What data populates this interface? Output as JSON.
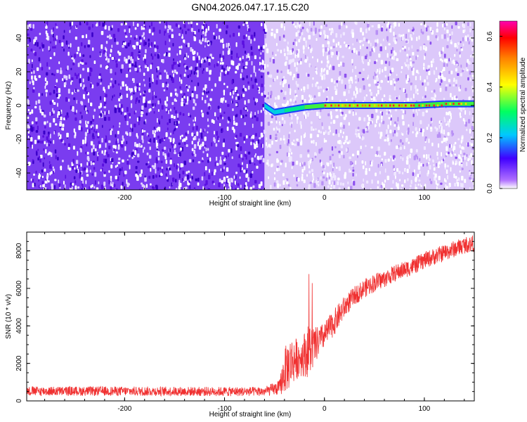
{
  "title": "GN04.2026.047.17.15.C20",
  "chart_data": [
    {
      "type": "heatmap",
      "xlabel": "Height of straight line (km)",
      "ylabel": "Frequency (Hz)",
      "xlim": [
        -298,
        150
      ],
      "ylim": [
        -50,
        50
      ],
      "x_ticks": [
        -200,
        -100,
        0,
        100
      ],
      "x_tick_labels": [
        "-200",
        "-100",
        "0",
        "100"
      ],
      "y_ticks": [
        -40,
        -20,
        0,
        20,
        40
      ],
      "y_tick_labels": [
        "-40",
        "-20",
        "0",
        "20",
        "40"
      ],
      "colorbar": {
        "label": "Normalized spectral amplitude",
        "range": [
          0,
          0.66
        ],
        "ticks": [
          0,
          0.2,
          0.4,
          0.6
        ],
        "tick_labels": [
          "0.0",
          "0.2",
          "0.4",
          "0.6"
        ],
        "colors": [
          "#ffffff",
          "#8a2be2",
          "#0000ff",
          "#00ffff",
          "#00ff00",
          "#ffff00",
          "#ff8000",
          "#ff0000",
          "#ff00ff"
        ]
      },
      "regions": [
        {
          "x_range": [
            -298,
            -60
          ],
          "description_level": 0.1
        },
        {
          "x_range": [
            -60,
            150
          ],
          "description_level": 0.03
        }
      ],
      "signal_band": {
        "frequency_hz": 0,
        "x_start": -60,
        "x_end": 150,
        "points": [
          {
            "x": -60,
            "y": 0,
            "amp": 0.2
          },
          {
            "x": -50,
            "y": -4,
            "amp": 0.3
          },
          {
            "x": -40,
            "y": -3,
            "amp": 0.35
          },
          {
            "x": -20,
            "y": -1,
            "amp": 0.45
          },
          {
            "x": 0,
            "y": 0,
            "amp": 0.5
          },
          {
            "x": 30,
            "y": 0,
            "amp": 0.6
          },
          {
            "x": 60,
            "y": 0,
            "amp": 0.62
          },
          {
            "x": 90,
            "y": 0,
            "amp": 0.55
          },
          {
            "x": 120,
            "y": 1,
            "amp": 0.5
          },
          {
            "x": 150,
            "y": 1,
            "amp": 0.45
          }
        ]
      }
    },
    {
      "type": "line",
      "xlabel": "Height of straight line (km)",
      "ylabel": "SNR (10 * v/v)",
      "xlim": [
        -298,
        150
      ],
      "ylim": [
        0,
        9000
      ],
      "x_ticks": [
        -200,
        -100,
        0,
        100
      ],
      "x_tick_labels": [
        "-200",
        "-100",
        "0",
        "100"
      ],
      "y_ticks": [
        0,
        2000,
        4000,
        6000,
        8000
      ],
      "y_tick_labels": [
        "0",
        "2000",
        "4000",
        "6000",
        "8000"
      ],
      "series": [
        {
          "color": "#f03030",
          "x": [
            -298,
            -250,
            -200,
            -150,
            -100,
            -60,
            -45,
            -40,
            -35,
            -30,
            -25,
            -20,
            -15,
            -10,
            -5,
            0,
            10,
            20,
            30,
            40,
            50,
            60,
            70,
            80,
            90,
            100,
            110,
            120,
            130,
            140,
            150
          ],
          "y": [
            520,
            520,
            520,
            510,
            500,
            500,
            700,
            1600,
            2000,
            2200,
            2300,
            2500,
            2700,
            2900,
            3200,
            3500,
            4200,
            5000,
            5600,
            6000,
            6300,
            6500,
            6800,
            7000,
            7200,
            7500,
            7700,
            7900,
            8100,
            8300,
            8400
          ],
          "noise_amplitude": [
            250,
            250,
            250,
            250,
            250,
            250,
            400,
            1200,
            1400,
            1200,
            1000,
            1200,
            1500,
            1000,
            800,
            700,
            700,
            600,
            500,
            500,
            500,
            450,
            450,
            450,
            450,
            450,
            450,
            450,
            450,
            450,
            450
          ]
        }
      ]
    }
  ]
}
